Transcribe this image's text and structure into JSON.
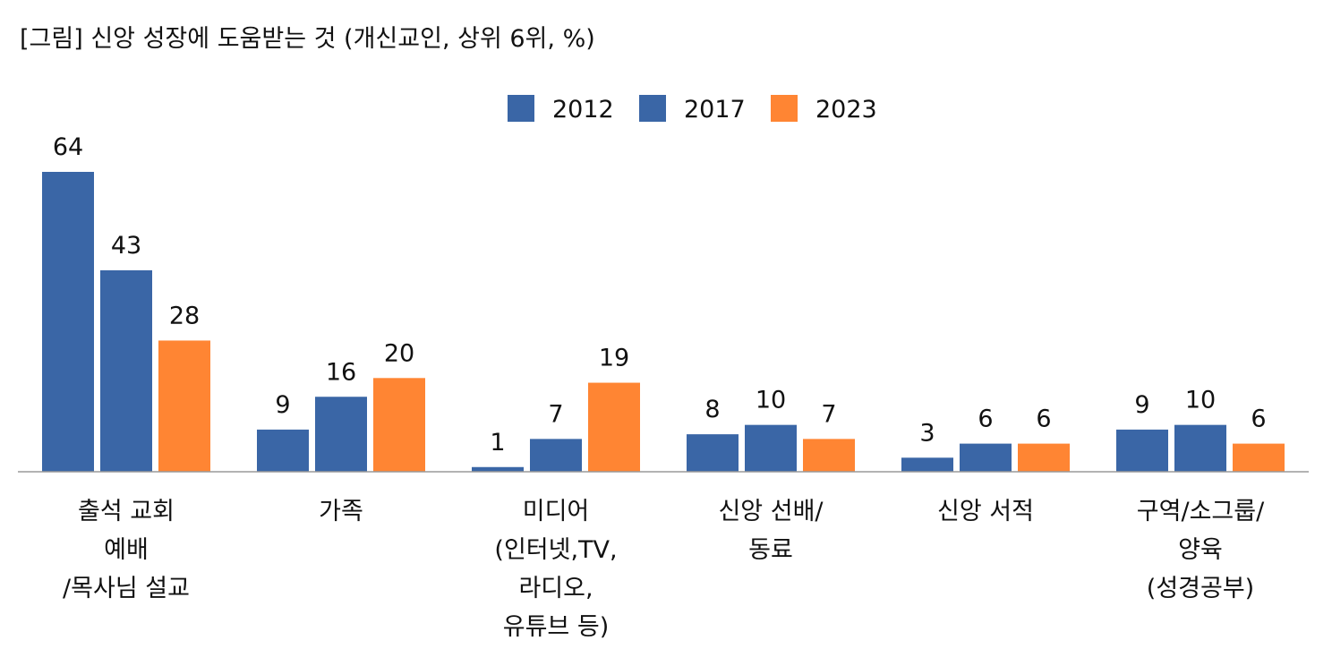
{
  "chart_data": {
    "type": "bar",
    "title": "[그림] 신앙 성장에 도움받는 것 (개신교인, 상위 6위, %)",
    "categories": [
      [
        "출석 교회",
        "예배",
        "/목사님 설교"
      ],
      [
        "가족"
      ],
      [
        "미디어",
        "(인터넷,TV,",
        "라디오,",
        "유튜브 등)"
      ],
      [
        "신앙 선배/",
        "동료"
      ],
      [
        "신앙 서적"
      ],
      [
        "구역/소그룹/",
        "양육",
        "(성경공부)"
      ]
    ],
    "series": [
      {
        "name": "2012",
        "color": "#3a66a6",
        "values": [
          64,
          9,
          1,
          8,
          3,
          9
        ]
      },
      {
        "name": "2017",
        "color": "#3a66a6",
        "values": [
          43,
          16,
          7,
          10,
          6,
          10
        ]
      },
      {
        "name": "2023",
        "color": "#ff8533",
        "values": [
          28,
          20,
          19,
          7,
          6,
          6
        ]
      }
    ],
    "xlabel": "",
    "ylabel": "",
    "ylim": [
      0,
      64
    ],
    "legend_position": "top-center",
    "grid": false
  }
}
